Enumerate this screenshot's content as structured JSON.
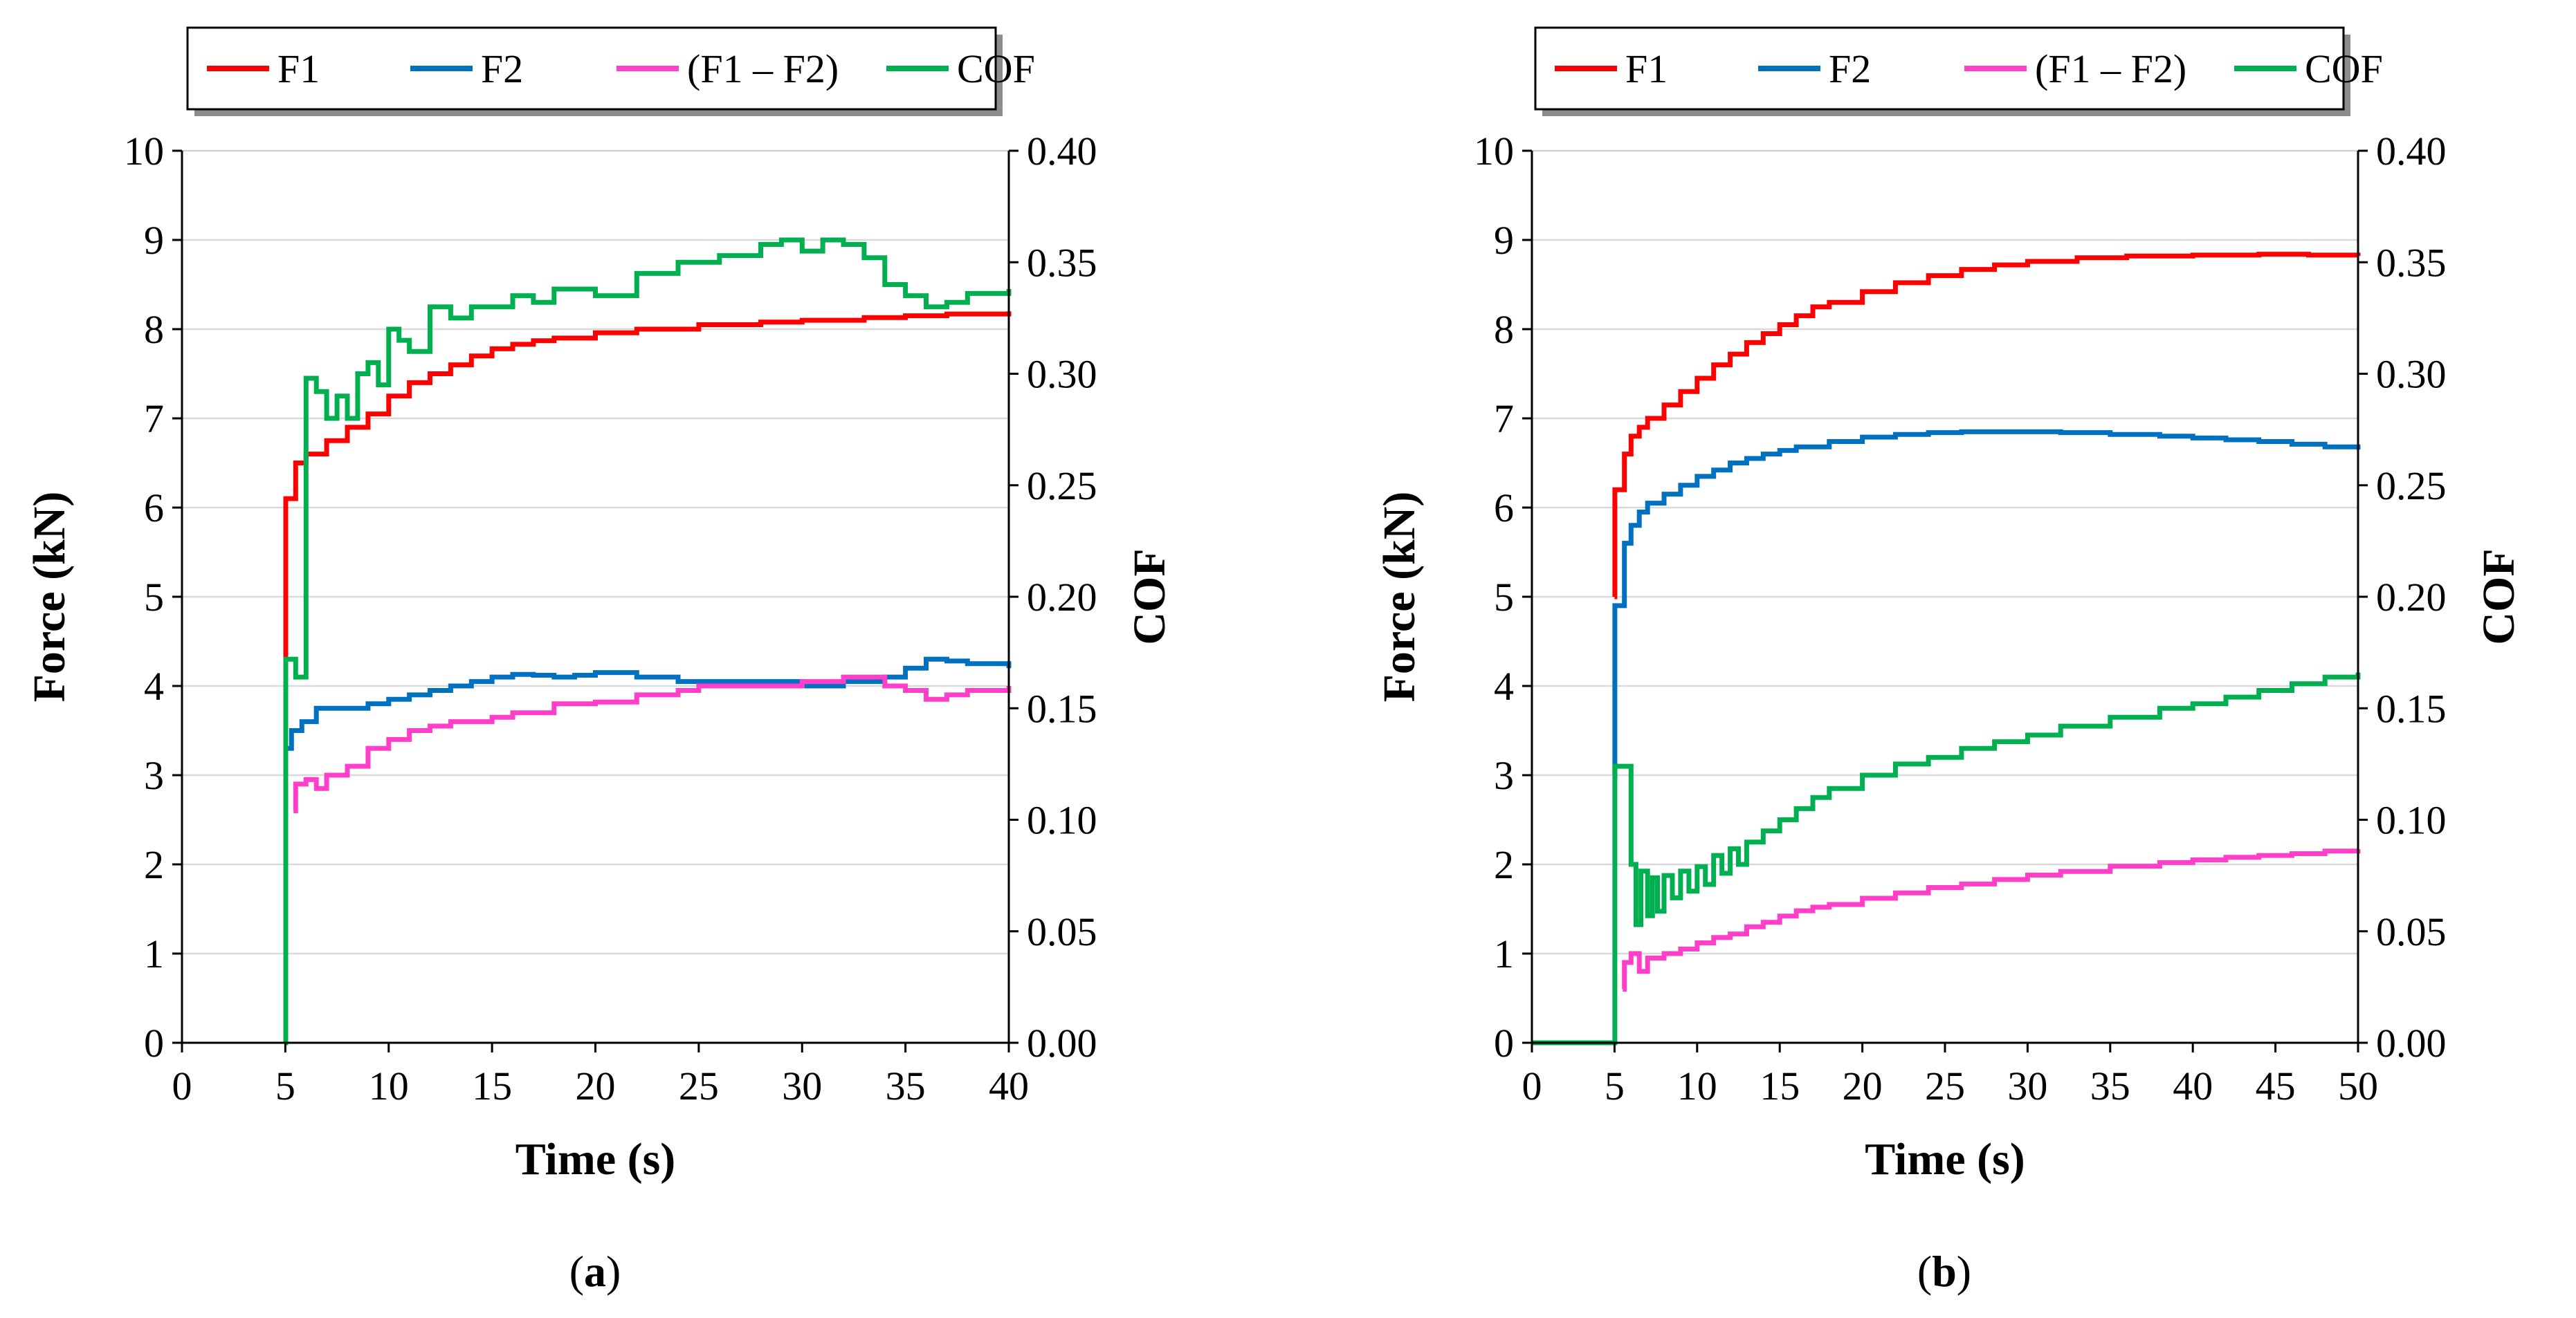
{
  "figure": {
    "captions": [
      "(a)",
      "(b)"
    ]
  },
  "chart_data": [
    {
      "type": "line",
      "panel": "a",
      "title": "",
      "caption_letter": "a",
      "xlabel": "Time (s)",
      "ylabel": "Force (kN)",
      "y2label": "COF",
      "xlim": [
        0,
        40
      ],
      "ylim": [
        0,
        10
      ],
      "y2lim": [
        0,
        0.4
      ],
      "xticks": [
        "0",
        "5",
        "10",
        "15",
        "20",
        "25",
        "30",
        "35",
        "40"
      ],
      "yticks": [
        "0",
        "1",
        "2",
        "3",
        "4",
        "5",
        "6",
        "7",
        "8",
        "9",
        "10"
      ],
      "y2ticks": [
        "0.00",
        "0.05",
        "0.10",
        "0.15",
        "0.20",
        "0.25",
        "0.30",
        "0.35",
        "0.40"
      ],
      "grid": "horizontal",
      "legend": "top",
      "series": [
        {
          "name": "F1",
          "color": "#ff0000",
          "axis": "left",
          "step": true,
          "x": [
            5,
            5.02,
            5.05,
            5.5,
            6,
            7,
            8,
            9,
            10,
            11,
            12,
            13,
            14,
            15,
            16,
            17,
            18,
            20,
            22,
            25,
            28,
            30,
            33,
            35,
            37,
            40
          ],
          "y": [
            4.3,
            6.1,
            6.1,
            6.5,
            6.6,
            6.75,
            6.9,
            7.05,
            7.25,
            7.4,
            7.5,
            7.6,
            7.7,
            7.78,
            7.83,
            7.87,
            7.9,
            7.96,
            8.0,
            8.05,
            8.08,
            8.1,
            8.13,
            8.15,
            8.17,
            8.2
          ]
        },
        {
          "name": "F2",
          "color": "#0070c0",
          "axis": "left",
          "step": true,
          "x": [
            5,
            5.3,
            5.8,
            6.5,
            7.5,
            9,
            10,
            11,
            12,
            13,
            14,
            15,
            16,
            17,
            18,
            19,
            20,
            21,
            22,
            24,
            26,
            28,
            30,
            32,
            34,
            35,
            36,
            37,
            38,
            40
          ],
          "y": [
            3.3,
            3.5,
            3.6,
            3.75,
            3.75,
            3.8,
            3.85,
            3.9,
            3.95,
            4.0,
            4.05,
            4.1,
            4.13,
            4.12,
            4.1,
            4.12,
            4.15,
            4.15,
            4.1,
            4.05,
            4.05,
            4.05,
            4.0,
            4.05,
            4.1,
            4.2,
            4.3,
            4.28,
            4.25,
            4.2
          ]
        },
        {
          "name": "(F1 – F2)",
          "color": "#ff3ec9",
          "axis": "left",
          "step": true,
          "x": [
            5.4,
            5.5,
            5.7,
            6,
            6.5,
            7,
            8,
            9,
            10,
            11,
            12,
            13,
            14,
            15,
            16,
            18,
            20,
            22,
            24,
            25,
            28,
            30,
            32,
            34,
            35,
            36,
            37,
            38,
            40
          ],
          "y": [
            2.6,
            2.9,
            2.9,
            2.95,
            2.85,
            3.0,
            3.1,
            3.3,
            3.4,
            3.5,
            3.55,
            3.6,
            3.6,
            3.65,
            3.7,
            3.8,
            3.82,
            3.9,
            3.95,
            4.0,
            4.0,
            4.05,
            4.1,
            4.0,
            3.95,
            3.85,
            3.9,
            3.95,
            4.0
          ]
        },
        {
          "name": "COF",
          "color": "#00b050",
          "axis": "right",
          "step": true,
          "x": [
            5,
            5.02,
            5.5,
            5.9,
            6,
            6.5,
            7,
            7.5,
            8,
            8.5,
            9,
            9.5,
            10,
            10.5,
            11,
            12,
            13,
            14,
            15,
            16,
            17,
            18,
            20,
            22,
            24,
            26,
            28,
            29,
            30,
            31,
            32,
            33,
            34,
            35,
            36,
            37,
            38,
            40
          ],
          "y": [
            0.0,
            0.172,
            0.164,
            0.164,
            0.298,
            0.292,
            0.28,
            0.29,
            0.28,
            0.3,
            0.305,
            0.295,
            0.32,
            0.315,
            0.31,
            0.33,
            0.325,
            0.33,
            0.33,
            0.335,
            0.332,
            0.338,
            0.335,
            0.345,
            0.35,
            0.353,
            0.358,
            0.36,
            0.355,
            0.36,
            0.358,
            0.352,
            0.34,
            0.335,
            0.33,
            0.332,
            0.336,
            0.338
          ]
        }
      ]
    },
    {
      "type": "line",
      "panel": "b",
      "title": "",
      "caption_letter": "b",
      "xlabel": "Time (s)",
      "ylabel": "Force (kN)",
      "y2label": "COF",
      "xlim": [
        0,
        50
      ],
      "ylim": [
        0,
        10
      ],
      "y2lim": [
        0,
        0.4
      ],
      "xticks": [
        "0",
        "5",
        "10",
        "15",
        "20",
        "25",
        "30",
        "35",
        "40",
        "45",
        "50"
      ],
      "yticks": [
        "0",
        "1",
        "2",
        "3",
        "4",
        "5",
        "6",
        "7",
        "8",
        "9",
        "10"
      ],
      "y2ticks": [
        "0.00",
        "0.05",
        "0.10",
        "0.15",
        "0.20",
        "0.25",
        "0.30",
        "0.35",
        "0.40"
      ],
      "grid": "horizontal",
      "legend": "top",
      "series": [
        {
          "name": "F1",
          "color": "#ff0000",
          "axis": "left",
          "step": true,
          "x": [
            5,
            5.02,
            5.6,
            6,
            6.5,
            7,
            8,
            9,
            10,
            11,
            12,
            13,
            14,
            15,
            16,
            17,
            18,
            20,
            22,
            24,
            26,
            28,
            30,
            33,
            36,
            40,
            44,
            47,
            50
          ],
          "y": [
            5.0,
            6.2,
            6.6,
            6.8,
            6.9,
            7.0,
            7.15,
            7.3,
            7.45,
            7.6,
            7.72,
            7.85,
            7.95,
            8.05,
            8.15,
            8.25,
            8.3,
            8.42,
            8.52,
            8.6,
            8.67,
            8.72,
            8.76,
            8.8,
            8.82,
            8.83,
            8.84,
            8.83,
            8.82
          ]
        },
        {
          "name": "F2",
          "color": "#0070c0",
          "axis": "left",
          "step": true,
          "x": [
            5,
            5.02,
            5.6,
            6,
            6.5,
            7,
            8,
            9,
            10,
            11,
            12,
            13,
            14,
            15,
            16,
            18,
            20,
            22,
            24,
            26,
            28,
            30,
            32,
            35,
            38,
            40,
            42,
            44,
            46,
            48,
            50
          ],
          "y": [
            3.0,
            4.9,
            5.6,
            5.8,
            5.95,
            6.05,
            6.15,
            6.25,
            6.35,
            6.42,
            6.5,
            6.55,
            6.6,
            6.64,
            6.68,
            6.74,
            6.79,
            6.82,
            6.84,
            6.85,
            6.85,
            6.85,
            6.84,
            6.82,
            6.8,
            6.78,
            6.76,
            6.74,
            6.71,
            6.68,
            6.65
          ]
        },
        {
          "name": "(F1 – F2)",
          "color": "#ff3ec9",
          "axis": "left",
          "step": true,
          "x": [
            5.5,
            5.6,
            6,
            6.5,
            7,
            8,
            9,
            10,
            11,
            12,
            13,
            14,
            15,
            16,
            17,
            18,
            20,
            22,
            24,
            26,
            28,
            30,
            32,
            35,
            38,
            40,
            42,
            44,
            46,
            48,
            50
          ],
          "y": [
            0.6,
            0.9,
            1.0,
            0.8,
            0.95,
            1.0,
            1.05,
            1.12,
            1.18,
            1.22,
            1.3,
            1.35,
            1.42,
            1.48,
            1.52,
            1.55,
            1.62,
            1.68,
            1.74,
            1.78,
            1.83,
            1.88,
            1.92,
            1.98,
            2.02,
            2.05,
            2.08,
            2.1,
            2.12,
            2.15,
            2.17
          ]
        },
        {
          "name": "COF",
          "color": "#00b050",
          "axis": "right",
          "step": true,
          "x": [
            0,
            4.95,
            5,
            5.02,
            5.9,
            6,
            6.3,
            6.6,
            7,
            7.3,
            7.6,
            8,
            8.5,
            9,
            9.5,
            10,
            10.5,
            11,
            11.5,
            12,
            12.5,
            13,
            14,
            15,
            16,
            17,
            18,
            20,
            22,
            24,
            26,
            28,
            30,
            32,
            35,
            38,
            40,
            42,
            44,
            46,
            48,
            50
          ],
          "y": [
            0.0,
            0.0,
            0.0,
            0.124,
            0.124,
            0.08,
            0.053,
            0.077,
            0.057,
            0.074,
            0.059,
            0.075,
            0.065,
            0.077,
            0.068,
            0.079,
            0.071,
            0.084,
            0.076,
            0.087,
            0.08,
            0.09,
            0.095,
            0.1,
            0.105,
            0.11,
            0.114,
            0.12,
            0.125,
            0.128,
            0.132,
            0.135,
            0.138,
            0.142,
            0.146,
            0.15,
            0.152,
            0.155,
            0.158,
            0.161,
            0.164,
            0.166
          ]
        }
      ]
    }
  ]
}
